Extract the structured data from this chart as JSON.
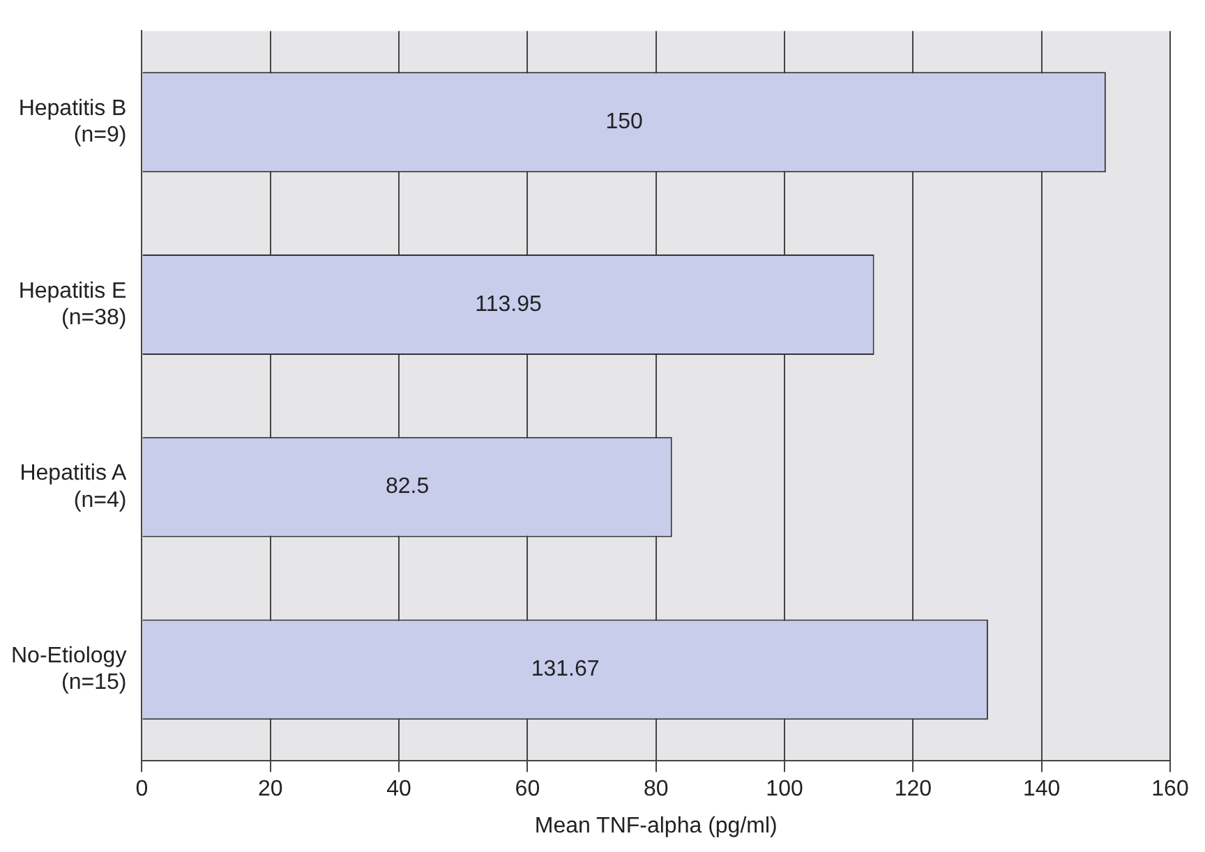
{
  "chart_data": {
    "type": "bar",
    "orientation": "horizontal",
    "xlabel": "Mean TNF-alpha (pg/ml)",
    "categories": [
      "Hepatitis B\n(n=9)",
      "Hepatitis E\n(n=38)",
      "Hepatitis A\n(n=4)",
      "No-Etiology\n(n=15)"
    ],
    "values": [
      150,
      113.95,
      82.5,
      131.67
    ],
    "color": "#c9cdec",
    "xlim": [
      0,
      160
    ],
    "xticks": [
      0,
      20,
      40,
      60,
      80,
      100,
      120,
      140,
      160
    ],
    "grid": "x",
    "data_labels": true
  }
}
